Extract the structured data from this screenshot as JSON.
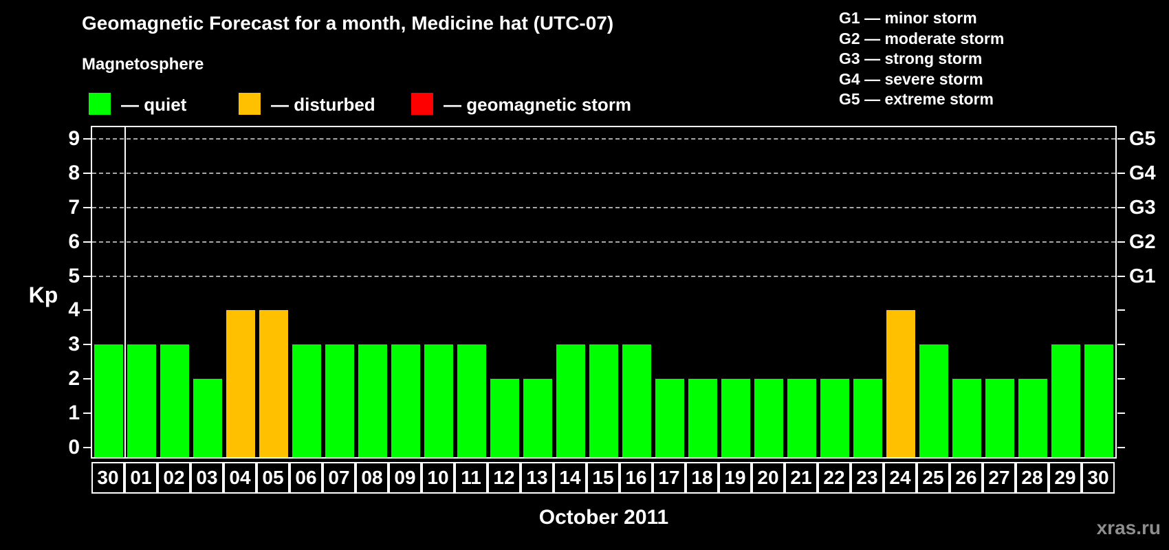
{
  "header": {
    "title": "Geomagnetic Forecast for a month, Medicine hat (UTC-07)",
    "subtitle": "Magnetosphere",
    "legend": [
      {
        "name": "quiet",
        "color": "#00ff00",
        "label": "— quiet"
      },
      {
        "name": "disturbed",
        "color": "#ffc000",
        "label": "— disturbed"
      },
      {
        "name": "storm",
        "color": "#ff0000",
        "label": "— geomagnetic storm"
      }
    ],
    "g_scale": [
      "G1 — minor storm",
      "G2 — moderate storm",
      "G3 — strong storm",
      "G4 — severe storm",
      "G5 — extreme storm"
    ]
  },
  "chart_data": {
    "type": "bar",
    "title": "Geomagnetic Forecast for a month, Medicine hat (UTC-07)",
    "xlabel": "October 2011",
    "ylabel": "Kp",
    "ylim": [
      0,
      9
    ],
    "y_ticks": [
      0,
      1,
      2,
      3,
      4,
      5,
      6,
      7,
      8,
      9
    ],
    "grid_levels": [
      5,
      6,
      7,
      8,
      9
    ],
    "grid_style": "dashed",
    "legend_position": "top-left",
    "right_axis_labels": [
      {
        "kp": 5,
        "label": "G1"
      },
      {
        "kp": 6,
        "label": "G2"
      },
      {
        "kp": 7,
        "label": "G3"
      },
      {
        "kp": 8,
        "label": "G4"
      },
      {
        "kp": 9,
        "label": "G5"
      }
    ],
    "categories": [
      "30",
      "01",
      "02",
      "03",
      "04",
      "05",
      "06",
      "07",
      "08",
      "09",
      "10",
      "11",
      "12",
      "13",
      "14",
      "15",
      "16",
      "17",
      "18",
      "19",
      "20",
      "21",
      "22",
      "23",
      "24",
      "25",
      "26",
      "27",
      "28",
      "29",
      "30"
    ],
    "values": [
      3,
      3,
      3,
      2,
      4,
      4,
      3,
      3,
      3,
      3,
      3,
      3,
      2,
      2,
      3,
      3,
      3,
      2,
      2,
      2,
      2,
      2,
      2,
      2,
      4,
      3,
      2,
      2,
      2,
      3,
      3
    ],
    "statuses": [
      "quiet",
      "quiet",
      "quiet",
      "quiet",
      "disturbed",
      "disturbed",
      "quiet",
      "quiet",
      "quiet",
      "quiet",
      "quiet",
      "quiet",
      "quiet",
      "quiet",
      "quiet",
      "quiet",
      "quiet",
      "quiet",
      "quiet",
      "quiet",
      "quiet",
      "quiet",
      "quiet",
      "quiet",
      "disturbed",
      "quiet",
      "quiet",
      "quiet",
      "quiet",
      "quiet",
      "quiet"
    ],
    "status_colors": {
      "quiet": "#00ff00",
      "disturbed": "#ffc000",
      "storm": "#ff0000"
    },
    "month_boundary_after_index": 0
  },
  "footer": {
    "x_axis_title": "October 2011",
    "watermark": "xras.ru"
  }
}
